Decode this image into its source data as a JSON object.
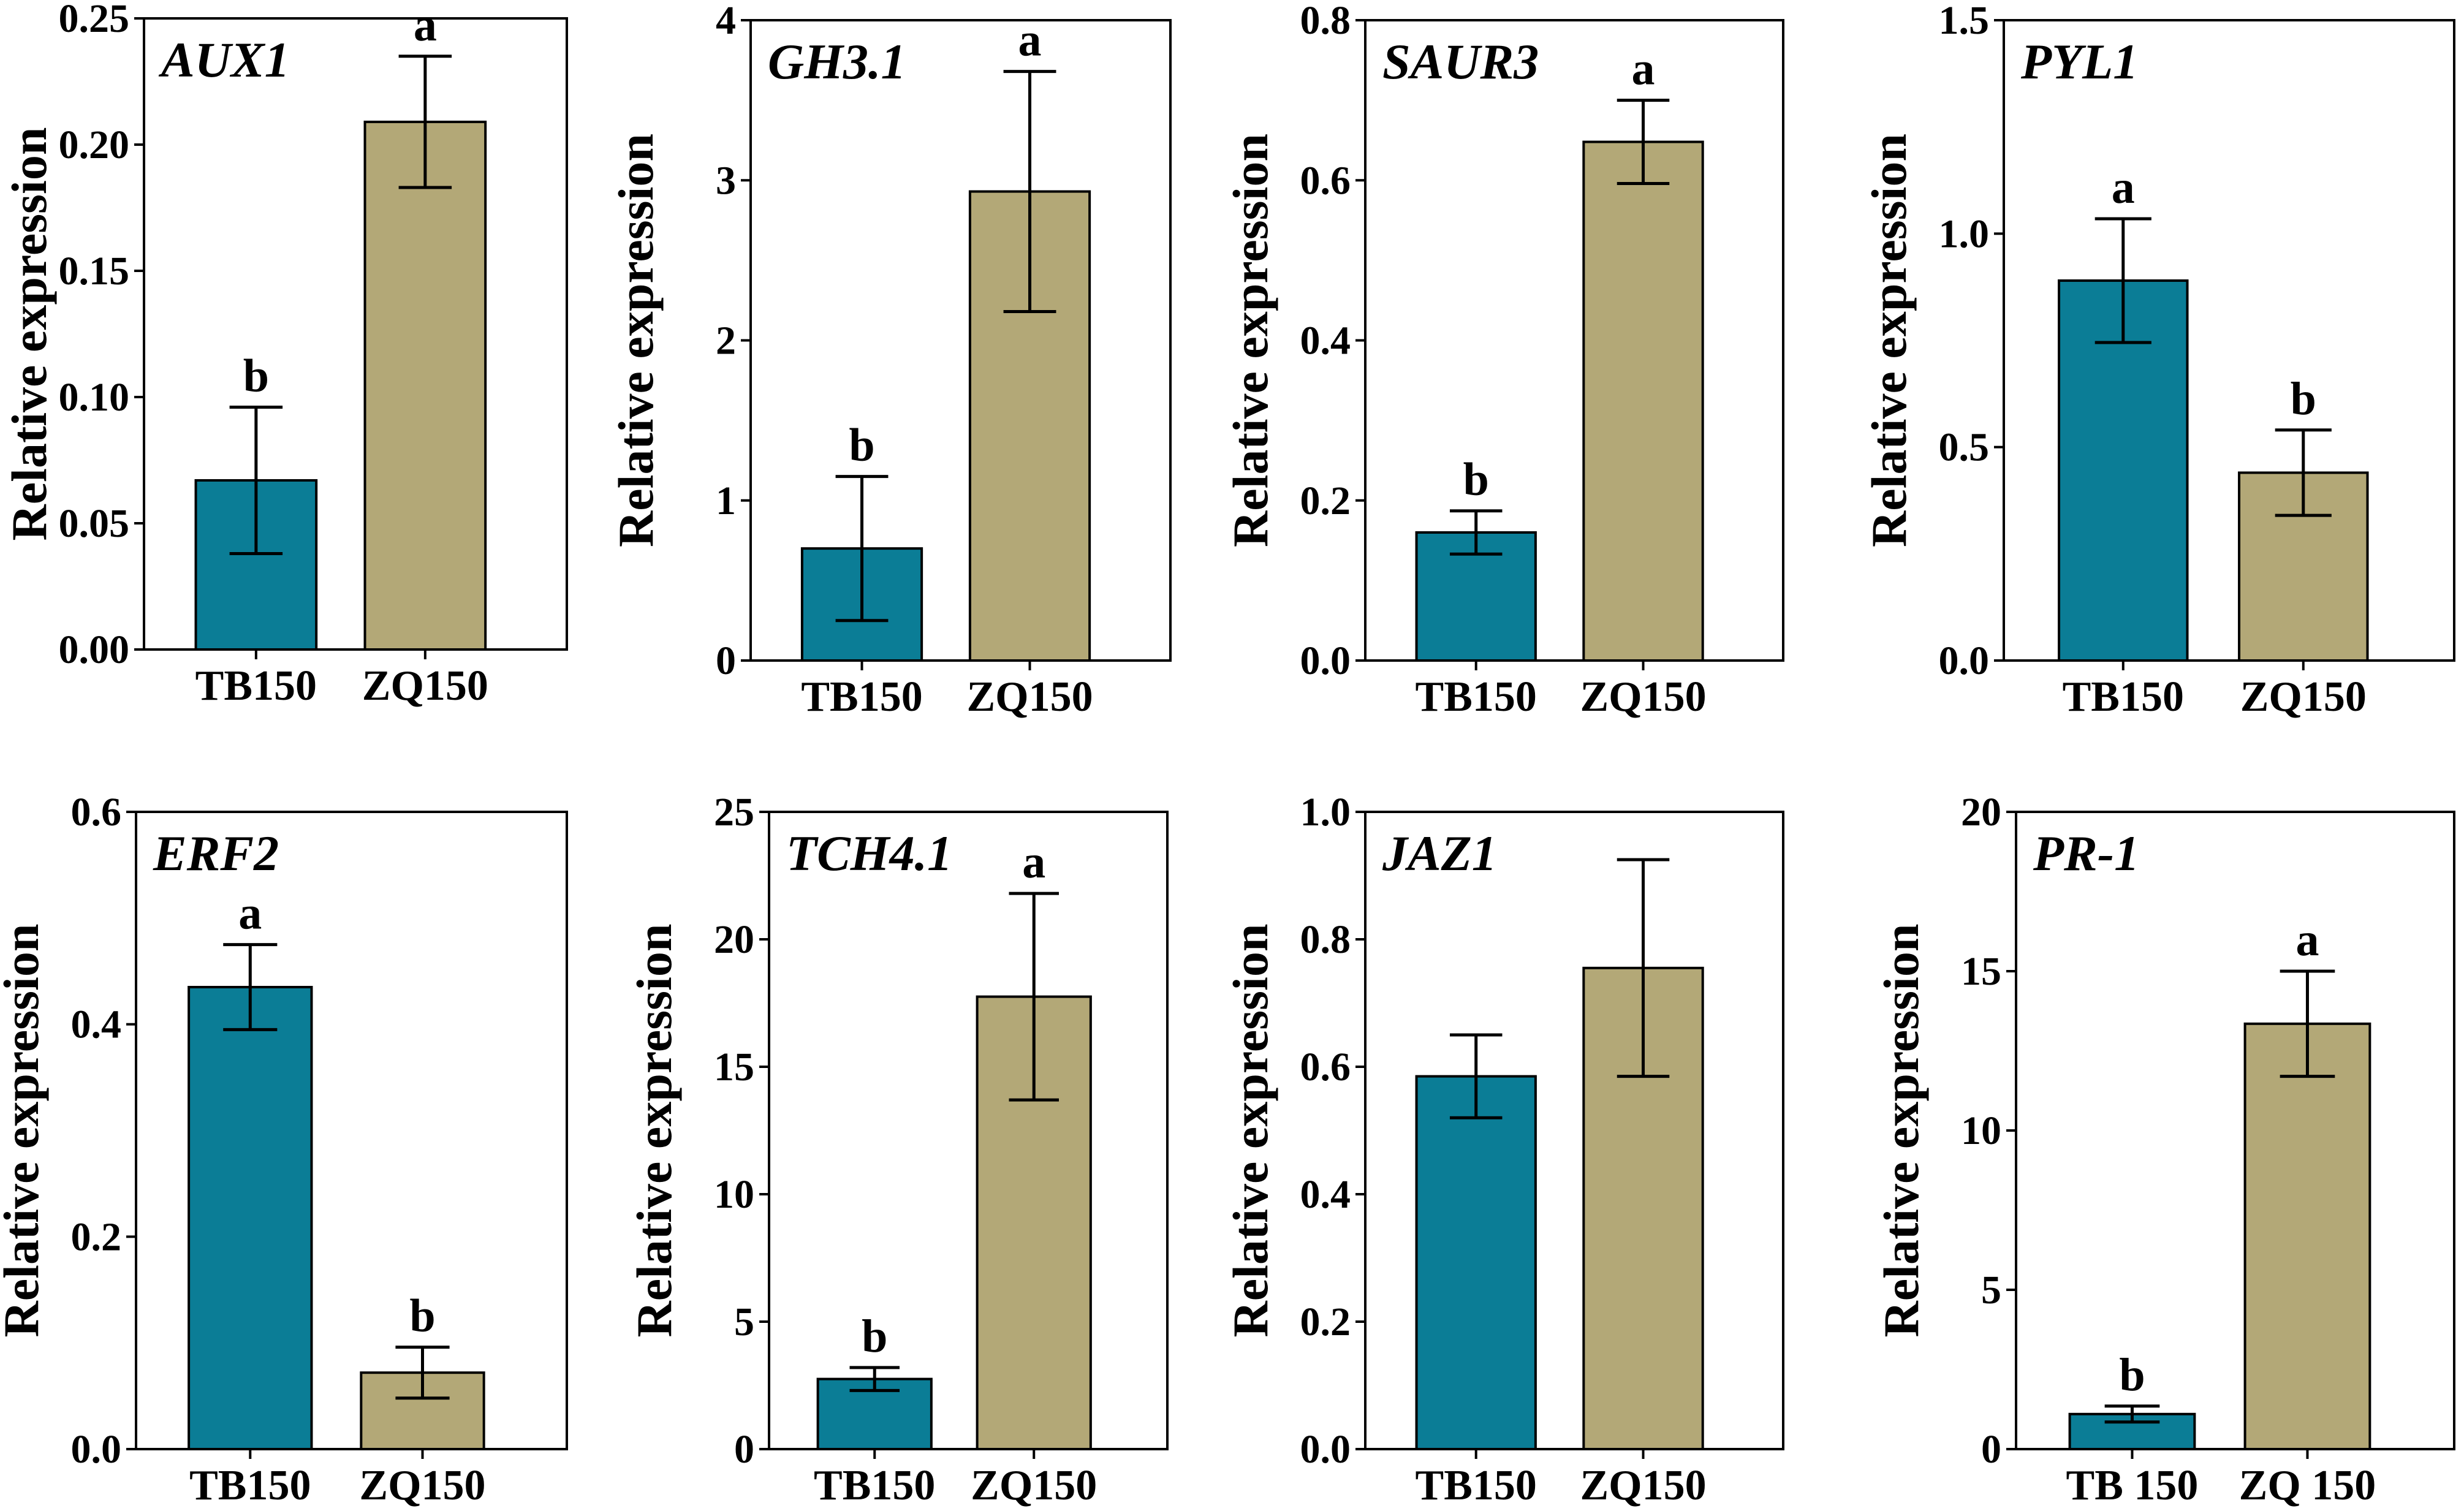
{
  "colors": {
    "tb": "#0b7d96",
    "zq": "#b3a877",
    "axis": "#000000"
  },
  "chart_data": [
    {
      "type": "bar",
      "title": "AUX1",
      "ylabel": "Relative expression",
      "categories": [
        "TB150",
        "ZQ150"
      ],
      "values": [
        0.067,
        0.209
      ],
      "errors": [
        0.029,
        0.026
      ],
      "significance": [
        "b",
        "a"
      ],
      "ylim": [
        0,
        0.25
      ],
      "yticks": [
        0,
        0.05,
        0.1,
        0.15,
        0.2,
        0.25
      ],
      "ytick_labels": [
        "0.00",
        "0.05",
        "0.10",
        "0.15",
        "0.20",
        "0.25"
      ]
    },
    {
      "type": "bar",
      "title": "GH3.1",
      "ylabel": "Relative expression",
      "categories": [
        "TB150",
        "ZQ150"
      ],
      "values": [
        0.7,
        2.93
      ],
      "errors": [
        0.45,
        0.75
      ],
      "significance": [
        "b",
        "a"
      ],
      "ylim": [
        0,
        4
      ],
      "yticks": [
        0,
        1,
        2,
        3,
        4
      ],
      "ytick_labels": [
        "0",
        "1",
        "2",
        "3",
        "4"
      ]
    },
    {
      "type": "bar",
      "title": "SAUR3",
      "ylabel": "Relative expression",
      "categories": [
        "TB150",
        "ZQ150"
      ],
      "values": [
        0.16,
        0.648
      ],
      "errors": [
        0.027,
        0.052
      ],
      "significance": [
        "b",
        "a"
      ],
      "ylim": [
        0,
        0.8
      ],
      "yticks": [
        0,
        0.2,
        0.4,
        0.6,
        0.8
      ],
      "ytick_labels": [
        "0.0",
        "0.2",
        "0.4",
        "0.6",
        "0.8"
      ]
    },
    {
      "type": "bar",
      "title": "PYL1",
      "ylabel": "Relative expression",
      "categories": [
        "TB150",
        "ZQ150"
      ],
      "values": [
        0.89,
        0.44
      ],
      "errors": [
        0.145,
        0.1
      ],
      "significance": [
        "a",
        "b"
      ],
      "ylim": [
        0,
        1.5
      ],
      "yticks": [
        0,
        0.5,
        1.0,
        1.5
      ],
      "ytick_labels": [
        "0.0",
        "0.5",
        "1.0",
        "1.5"
      ]
    },
    {
      "type": "bar",
      "title": "ERF2",
      "ylabel": "Relative expression",
      "categories": [
        "TB150",
        "ZQ150"
      ],
      "values": [
        0.435,
        0.072
      ],
      "errors": [
        0.04,
        0.024
      ],
      "significance": [
        "a",
        "b"
      ],
      "ylim": [
        0,
        0.6
      ],
      "yticks": [
        0,
        0.2,
        0.4,
        0.6
      ],
      "ytick_labels": [
        "0.0",
        "0.2",
        "0.4",
        "0.6"
      ]
    },
    {
      "type": "bar",
      "title": "TCH4.1",
      "ylabel": "Relative expression",
      "categories": [
        "TB150",
        "ZQ150"
      ],
      "values": [
        2.75,
        17.75
      ],
      "errors": [
        0.45,
        4.05
      ],
      "significance": [
        "b",
        "a"
      ],
      "ylim": [
        0,
        25
      ],
      "yticks": [
        0,
        5,
        10,
        15,
        20,
        25
      ],
      "ytick_labels": [
        "0",
        "5",
        "10",
        "15",
        "20",
        "25"
      ]
    },
    {
      "type": "bar",
      "title": "JAZ1",
      "ylabel": "Relative expression",
      "categories": [
        "TB150",
        "ZQ150"
      ],
      "values": [
        0.585,
        0.755
      ],
      "errors": [
        0.065,
        0.17
      ],
      "significance": [
        "",
        ""
      ],
      "ylim": [
        0,
        1.0
      ],
      "yticks": [
        0,
        0.2,
        0.4,
        0.6,
        0.8,
        1.0
      ],
      "ytick_labels": [
        "0.0",
        "0.2",
        "0.4",
        "0.6",
        "0.8",
        "1.0"
      ]
    },
    {
      "type": "bar",
      "title": "PR-1",
      "ylabel": "Relative expression",
      "categories": [
        "TB 150",
        "ZQ 150"
      ],
      "values": [
        1.1,
        13.35
      ],
      "errors": [
        0.25,
        1.65
      ],
      "significance": [
        "b",
        "a"
      ],
      "ylim": [
        0,
        20
      ],
      "yticks": [
        0,
        5,
        10,
        15,
        20
      ],
      "ytick_labels": [
        "0",
        "5",
        "10",
        "15",
        "20"
      ]
    }
  ]
}
